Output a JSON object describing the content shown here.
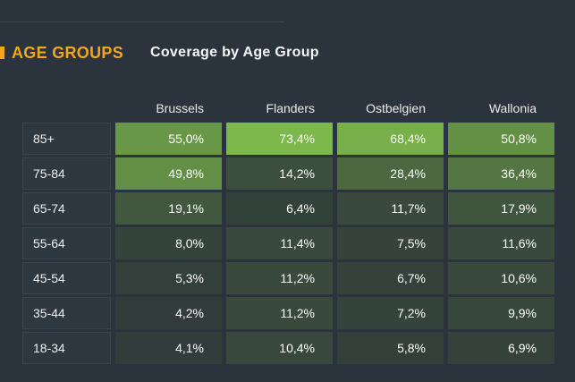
{
  "page": {
    "background_color": "#2b343c",
    "accent_color": "#f2a51f"
  },
  "header": {
    "section_label": "AGE GROUPS",
    "title": "Coverage by Age Group"
  },
  "table": {
    "columns": [
      "Brussels",
      "Flanders",
      "Ostbelgien",
      "Wallonia"
    ],
    "rows": [
      {
        "label": "85+",
        "display": [
          "55,0%",
          "73,4%",
          "68,4%",
          "50,8%"
        ],
        "values": [
          55.0,
          73.4,
          68.4,
          50.8
        ]
      },
      {
        "label": "75-84",
        "display": [
          "49,8%",
          "14,2%",
          "28,4%",
          "36,4%"
        ],
        "values": [
          49.8,
          14.2,
          28.4,
          36.4
        ]
      },
      {
        "label": "65-74",
        "display": [
          "19,1%",
          "6,4%",
          "11,7%",
          "17,9%"
        ],
        "values": [
          19.1,
          6.4,
          11.7,
          17.9
        ]
      },
      {
        "label": "55-64",
        "display": [
          "8,0%",
          "11,4%",
          "7,5%",
          "11,6%"
        ],
        "values": [
          8.0,
          11.4,
          7.5,
          11.6
        ]
      },
      {
        "label": "45-54",
        "display": [
          "5,3%",
          "11,2%",
          "6,7%",
          "10,6%"
        ],
        "values": [
          5.3,
          11.2,
          6.7,
          10.6
        ]
      },
      {
        "label": "35-44",
        "display": [
          "4,2%",
          "11,2%",
          "7,2%",
          "9,9%"
        ],
        "values": [
          4.2,
          11.2,
          7.2,
          9.9
        ]
      },
      {
        "label": "18-34",
        "display": [
          "4,1%",
          "10,4%",
          "5,8%",
          "6,9%"
        ],
        "values": [
          4.1,
          10.4,
          5.8,
          6.9
        ]
      }
    ],
    "heat_scale": {
      "min_value": 4.1,
      "max_value": 73.4,
      "min_color": "#313d3a",
      "max_color": "#7cb84c"
    }
  },
  "chart_data": {
    "type": "heatmap",
    "title": "Coverage by Age Group",
    "columns": [
      "Brussels",
      "Flanders",
      "Ostbelgien",
      "Wallonia"
    ],
    "rows": [
      "85+",
      "75-84",
      "65-74",
      "55-64",
      "45-54",
      "35-44",
      "18-34"
    ],
    "values": [
      [
        55.0,
        73.4,
        68.4,
        50.8
      ],
      [
        49.8,
        14.2,
        28.4,
        36.4
      ],
      [
        19.1,
        6.4,
        11.7,
        17.9
      ],
      [
        8.0,
        11.4,
        7.5,
        11.6
      ],
      [
        5.3,
        11.2,
        6.7,
        10.6
      ],
      [
        4.2,
        11.2,
        7.2,
        9.9
      ],
      [
        4.1,
        10.4,
        5.8,
        6.9
      ]
    ],
    "value_unit": "%",
    "value_format": "comma-decimal",
    "color_scale": [
      "#313d3a",
      "#7cb84c"
    ],
    "legend": "none"
  }
}
